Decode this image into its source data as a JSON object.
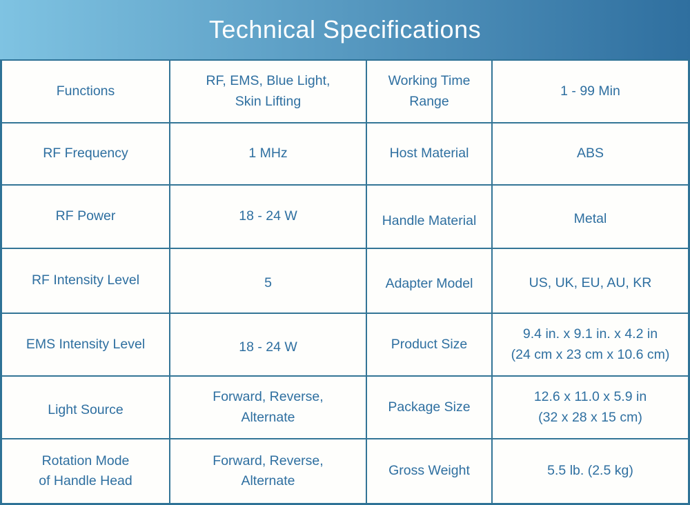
{
  "title": "Technical Specifications",
  "specs": {
    "rows": [
      {
        "c1": "Functions",
        "c2": "RF, EMS, Blue Light,\nSkin Lifting",
        "c3": "Working Time\nRange",
        "c4": "1 - 99 Min"
      },
      {
        "c1": "RF Frequency",
        "c2": "1 MHz",
        "c3": "Host Material",
        "c4": "ABS"
      },
      {
        "c1": "RF Power",
        "c2": "18 - 24 W",
        "c3": "Handle Material",
        "c4": "Metal"
      },
      {
        "c1": "RF Intensity Level",
        "c2": "5",
        "c3": "Adapter Model",
        "c4": "US, UK, EU, AU, KR"
      },
      {
        "c1": "EMS Intensity Level",
        "c2": "18 - 24 W",
        "c3": "Product Size",
        "c4": "9.4 in. x 9.1 in. x 4.2 in\n(24 cm x 23 cm x 10.6 cm)"
      },
      {
        "c1": "Light Source",
        "c2": "Forward, Reverse,\nAlternate",
        "c3": "Package Size",
        "c4": "12.6 x 11.0 x 5.9 in\n(32 x 28 x 15 cm)"
      },
      {
        "c1": "Rotation Mode\nof Handle Head",
        "c2": "Forward, Reverse,\nAlternate",
        "c3": "Gross Weight",
        "c4": "5.5 lb. (2.5 kg)"
      }
    ]
  },
  "colors": {
    "header_gradient_start": "#7fc3e2",
    "header_gradient_end": "#2f6f9f",
    "grid_border": "#337596",
    "outer_border": "#2e7296",
    "cell_text": "#2e6fa0",
    "title_text": "#ffffff",
    "cell_background": "#fefefc"
  }
}
